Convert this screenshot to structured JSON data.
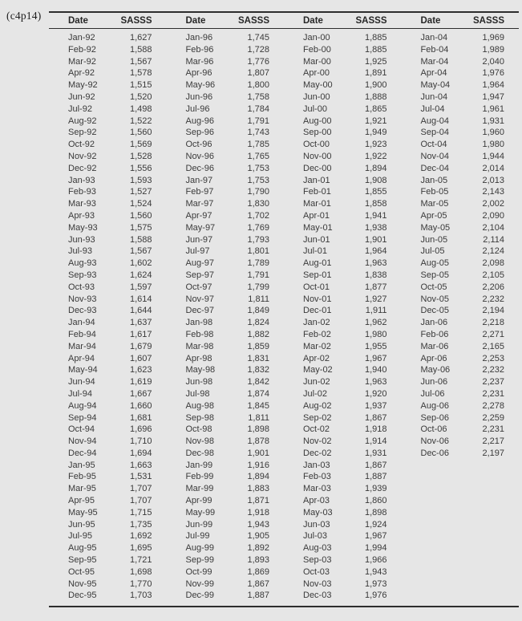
{
  "page_label": "(c4p14)",
  "colors": {
    "background": "#e6e6e6",
    "text": "#3a3a3a",
    "rule": "#2d2d2d"
  },
  "table": {
    "headers": [
      "Date",
      "SASSS",
      "Date",
      "SASSS",
      "Date",
      "SASSS",
      "Date",
      "SASSS"
    ],
    "row_count": 48,
    "blocks": [
      {
        "rows": [
          [
            "Jan-92",
            "1,627"
          ],
          [
            "Feb-92",
            "1,588"
          ],
          [
            "Mar-92",
            "1,567"
          ],
          [
            "Apr-92",
            "1,578"
          ],
          [
            "May-92",
            "1,515"
          ],
          [
            "Jun-92",
            "1,520"
          ],
          [
            "Jul-92",
            "1,498"
          ],
          [
            "Aug-92",
            "1,522"
          ],
          [
            "Sep-92",
            "1,560"
          ],
          [
            "Oct-92",
            "1,569"
          ],
          [
            "Nov-92",
            "1,528"
          ],
          [
            "Dec-92",
            "1,556"
          ],
          [
            "Jan-93",
            "1,593"
          ],
          [
            "Feb-93",
            "1,527"
          ],
          [
            "Mar-93",
            "1,524"
          ],
          [
            "Apr-93",
            "1,560"
          ],
          [
            "May-93",
            "1,575"
          ],
          [
            "Jun-93",
            "1,588"
          ],
          [
            "Jul-93",
            "1,567"
          ],
          [
            "Aug-93",
            "1,602"
          ],
          [
            "Sep-93",
            "1,624"
          ],
          [
            "Oct-93",
            "1,597"
          ],
          [
            "Nov-93",
            "1,614"
          ],
          [
            "Dec-93",
            "1,644"
          ],
          [
            "Jan-94",
            "1,637"
          ],
          [
            "Feb-94",
            "1,617"
          ],
          [
            "Mar-94",
            "1,679"
          ],
          [
            "Apr-94",
            "1,607"
          ],
          [
            "May-94",
            "1,623"
          ],
          [
            "Jun-94",
            "1,619"
          ],
          [
            "Jul-94",
            "1,667"
          ],
          [
            "Aug-94",
            "1,660"
          ],
          [
            "Sep-94",
            "1,681"
          ],
          [
            "Oct-94",
            "1,696"
          ],
          [
            "Nov-94",
            "1,710"
          ],
          [
            "Dec-94",
            "1,694"
          ],
          [
            "Jan-95",
            "1,663"
          ],
          [
            "Feb-95",
            "1,531"
          ],
          [
            "Mar-95",
            "1,707"
          ],
          [
            "Apr-95",
            "1,707"
          ],
          [
            "May-95",
            "1,715"
          ],
          [
            "Jun-95",
            "1,735"
          ],
          [
            "Jul-95",
            "1,692"
          ],
          [
            "Aug-95",
            "1,695"
          ],
          [
            "Sep-95",
            "1,721"
          ],
          [
            "Oct-95",
            "1,698"
          ],
          [
            "Nov-95",
            "1,770"
          ],
          [
            "Dec-95",
            "1,703"
          ]
        ]
      },
      {
        "rows": [
          [
            "Jan-96",
            "1,745"
          ],
          [
            "Feb-96",
            "1,728"
          ],
          [
            "Mar-96",
            "1,776"
          ],
          [
            "Apr-96",
            "1,807"
          ],
          [
            "May-96",
            "1,800"
          ],
          [
            "Jun-96",
            "1,758"
          ],
          [
            "Jul-96",
            "1,784"
          ],
          [
            "Aug-96",
            "1,791"
          ],
          [
            "Sep-96",
            "1,743"
          ],
          [
            "Oct-96",
            "1,785"
          ],
          [
            "Nov-96",
            "1,765"
          ],
          [
            "Dec-96",
            "1,753"
          ],
          [
            "Jan-97",
            "1,753"
          ],
          [
            "Feb-97",
            "1,790"
          ],
          [
            "Mar-97",
            "1,830"
          ],
          [
            "Apr-97",
            "1,702"
          ],
          [
            "May-97",
            "1,769"
          ],
          [
            "Jun-97",
            "1,793"
          ],
          [
            "Jul-97",
            "1,801"
          ],
          [
            "Aug-97",
            "1,789"
          ],
          [
            "Sep-97",
            "1,791"
          ],
          [
            "Oct-97",
            "1,799"
          ],
          [
            "Nov-97",
            "1,811"
          ],
          [
            "Dec-97",
            "1,849"
          ],
          [
            "Jan-98",
            "1,824"
          ],
          [
            "Feb-98",
            "1,882"
          ],
          [
            "Mar-98",
            "1,859"
          ],
          [
            "Apr-98",
            "1,831"
          ],
          [
            "May-98",
            "1,832"
          ],
          [
            "Jun-98",
            "1,842"
          ],
          [
            "Jul-98",
            "1,874"
          ],
          [
            "Aug-98",
            "1,845"
          ],
          [
            "Sep-98",
            "1,811"
          ],
          [
            "Oct-98",
            "1,898"
          ],
          [
            "Nov-98",
            "1,878"
          ],
          [
            "Dec-98",
            "1,901"
          ],
          [
            "Jan-99",
            "1,916"
          ],
          [
            "Feb-99",
            "1,894"
          ],
          [
            "Mar-99",
            "1,883"
          ],
          [
            "Apr-99",
            "1,871"
          ],
          [
            "May-99",
            "1,918"
          ],
          [
            "Jun-99",
            "1,943"
          ],
          [
            "Jul-99",
            "1,905"
          ],
          [
            "Aug-99",
            "1,892"
          ],
          [
            "Sep-99",
            "1,893"
          ],
          [
            "Oct-99",
            "1,869"
          ],
          [
            "Nov-99",
            "1,867"
          ],
          [
            "Dec-99",
            "1,887"
          ]
        ]
      },
      {
        "rows": [
          [
            "Jan-00",
            "1,885"
          ],
          [
            "Feb-00",
            "1,885"
          ],
          [
            "Mar-00",
            "1,925"
          ],
          [
            "Apr-00",
            "1,891"
          ],
          [
            "May-00",
            "1,900"
          ],
          [
            "Jun-00",
            "1,888"
          ],
          [
            "Jul-00",
            "1,865"
          ],
          [
            "Aug-00",
            "1,921"
          ],
          [
            "Sep-00",
            "1,949"
          ],
          [
            "Oct-00",
            "1,923"
          ],
          [
            "Nov-00",
            "1,922"
          ],
          [
            "Dec-00",
            "1,894"
          ],
          [
            "Jan-01",
            "1,908"
          ],
          [
            "Feb-01",
            "1,855"
          ],
          [
            "Mar-01",
            "1,858"
          ],
          [
            "Apr-01",
            "1,941"
          ],
          [
            "May-01",
            "1,938"
          ],
          [
            "Jun-01",
            "1,901"
          ],
          [
            "Jul-01",
            "1,964"
          ],
          [
            "Aug-01",
            "1,963"
          ],
          [
            "Sep-01",
            "1,838"
          ],
          [
            "Oct-01",
            "1,877"
          ],
          [
            "Nov-01",
            "1,927"
          ],
          [
            "Dec-01",
            "1,911"
          ],
          [
            "Jan-02",
            "1,962"
          ],
          [
            "Feb-02",
            "1,980"
          ],
          [
            "Mar-02",
            "1,955"
          ],
          [
            "Apr-02",
            "1,967"
          ],
          [
            "May-02",
            "1,940"
          ],
          [
            "Jun-02",
            "1,963"
          ],
          [
            "Jul-02",
            "1,920"
          ],
          [
            "Aug-02",
            "1,937"
          ],
          [
            "Sep-02",
            "1,867"
          ],
          [
            "Oct-02",
            "1,918"
          ],
          [
            "Nov-02",
            "1,914"
          ],
          [
            "Dec-02",
            "1,931"
          ],
          [
            "Jan-03",
            "1,867"
          ],
          [
            "Feb-03",
            "1,887"
          ],
          [
            "Mar-03",
            "1,939"
          ],
          [
            "Apr-03",
            "1,860"
          ],
          [
            "May-03",
            "1,898"
          ],
          [
            "Jun-03",
            "1,924"
          ],
          [
            "Jul-03",
            "1,967"
          ],
          [
            "Aug-03",
            "1,994"
          ],
          [
            "Sep-03",
            "1,966"
          ],
          [
            "Oct-03",
            "1,943"
          ],
          [
            "Nov-03",
            "1,973"
          ],
          [
            "Dec-03",
            "1,976"
          ]
        ]
      },
      {
        "rows": [
          [
            "Jan-04",
            "1,969"
          ],
          [
            "Feb-04",
            "1,989"
          ],
          [
            "Mar-04",
            "2,040"
          ],
          [
            "Apr-04",
            "1,976"
          ],
          [
            "May-04",
            "1,964"
          ],
          [
            "Jun-04",
            "1,947"
          ],
          [
            "Jul-04",
            "1,961"
          ],
          [
            "Aug-04",
            "1,931"
          ],
          [
            "Sep-04",
            "1,960"
          ],
          [
            "Oct-04",
            "1,980"
          ],
          [
            "Nov-04",
            "1,944"
          ],
          [
            "Dec-04",
            "2,014"
          ],
          [
            "Jan-05",
            "2,013"
          ],
          [
            "Feb-05",
            "2,143"
          ],
          [
            "Mar-05",
            "2,002"
          ],
          [
            "Apr-05",
            "2,090"
          ],
          [
            "May-05",
            "2,104"
          ],
          [
            "Jun-05",
            "2,114"
          ],
          [
            "Jul-05",
            "2,124"
          ],
          [
            "Aug-05",
            "2,098"
          ],
          [
            "Sep-05",
            "2,105"
          ],
          [
            "Oct-05",
            "2,206"
          ],
          [
            "Nov-05",
            "2,232"
          ],
          [
            "Dec-05",
            "2,194"
          ],
          [
            "Jan-06",
            "2,218"
          ],
          [
            "Feb-06",
            "2,271"
          ],
          [
            "Mar-06",
            "2,165"
          ],
          [
            "Apr-06",
            "2,253"
          ],
          [
            "May-06",
            "2,232"
          ],
          [
            "Jun-06",
            "2,237"
          ],
          [
            "Jul-06",
            "2,231"
          ],
          [
            "Aug-06",
            "2,278"
          ],
          [
            "Sep-06",
            "2,259"
          ],
          [
            "Oct-06",
            "2,231"
          ],
          [
            "Nov-06",
            "2,217"
          ],
          [
            "Dec-06",
            "2,197"
          ]
        ]
      }
    ]
  }
}
